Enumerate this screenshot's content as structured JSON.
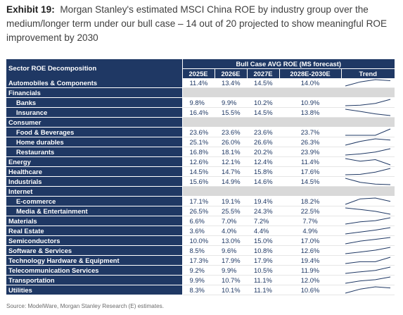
{
  "header": {
    "exhibit": "Exhibit 19:",
    "title": "Morgan Stanley's estimated MSCI China ROE by industry group over the medium/longer term under our bull case – 14 out of 20 projected to show meaningful ROE improvement by 2030"
  },
  "table": {
    "sector_header": "Sector ROE Decomposition",
    "group_header": "Bull Case AVG ROE (MS forecast)",
    "columns": [
      "2025E",
      "2026E",
      "2027E",
      "2028E-2030E",
      "Trend"
    ],
    "rows": [
      {
        "name": "Automobiles & Components",
        "sub": false,
        "values": [
          "11.4%",
          "13.4%",
          "14.5%",
          "14.0%"
        ]
      },
      {
        "name": "Financials",
        "sub": false,
        "values": null
      },
      {
        "name": "Banks",
        "sub": true,
        "values": [
          "9.8%",
          "9.9%",
          "10.2%",
          "10.9%"
        ]
      },
      {
        "name": "Insurance",
        "sub": true,
        "values": [
          "16.4%",
          "15.5%",
          "14.5%",
          "13.8%"
        ]
      },
      {
        "name": "Consumer",
        "sub": false,
        "values": null
      },
      {
        "name": "Food & Beverages",
        "sub": true,
        "values": [
          "23.6%",
          "23.6%",
          "23.6%",
          "23.7%"
        ]
      },
      {
        "name": "Home durables",
        "sub": true,
        "values": [
          "25.1%",
          "26.0%",
          "26.6%",
          "26.3%"
        ]
      },
      {
        "name": "Restaurants",
        "sub": true,
        "values": [
          "16.8%",
          "18.1%",
          "20.2%",
          "23.9%"
        ]
      },
      {
        "name": "Energy",
        "sub": false,
        "values": [
          "12.6%",
          "12.1%",
          "12.4%",
          "11.4%"
        ]
      },
      {
        "name": "Healthcare",
        "sub": false,
        "values": [
          "14.5%",
          "14.7%",
          "15.8%",
          "17.6%"
        ]
      },
      {
        "name": "Industrials",
        "sub": false,
        "values": [
          "15.6%",
          "14.9%",
          "14.6%",
          "14.5%"
        ]
      },
      {
        "name": "Internet",
        "sub": false,
        "values": null
      },
      {
        "name": "E-commerce",
        "sub": true,
        "values": [
          "17.1%",
          "19.1%",
          "19.4%",
          "18.2%"
        ]
      },
      {
        "name": "Media & Entertainment",
        "sub": true,
        "values": [
          "26.5%",
          "25.5%",
          "24.3%",
          "22.5%"
        ]
      },
      {
        "name": "Materials",
        "sub": false,
        "values": [
          "6.6%",
          "7.0%",
          "7.2%",
          "7.7%"
        ]
      },
      {
        "name": "Real Estate",
        "sub": false,
        "values": [
          "3.6%",
          "4.0%",
          "4.4%",
          "4.9%"
        ]
      },
      {
        "name": "Semiconductors",
        "sub": false,
        "values": [
          "10.0%",
          "13.0%",
          "15.0%",
          "17.0%"
        ]
      },
      {
        "name": "Software & Services",
        "sub": false,
        "values": [
          "8.5%",
          "9.6%",
          "10.8%",
          "12.6%"
        ]
      },
      {
        "name": "Technology Hardware & Equipment",
        "sub": false,
        "values": [
          "17.3%",
          "17.9%",
          "17.9%",
          "19.4%"
        ]
      },
      {
        "name": "Telecommunication Services",
        "sub": false,
        "values": [
          "9.2%",
          "9.9%",
          "10.5%",
          "11.9%"
        ]
      },
      {
        "name": "Transportation",
        "sub": false,
        "values": [
          "9.9%",
          "10.7%",
          "11.1%",
          "12.0%"
        ]
      },
      {
        "name": "Utilities",
        "sub": false,
        "values": [
          "8.3%",
          "10.1%",
          "11.1%",
          "10.6%"
        ]
      }
    ]
  },
  "colors": {
    "header_bg": "#1f3864",
    "value_text": "#1f3864",
    "blank_fill": "#d9d9d9",
    "sparkline": "#1f3864"
  },
  "source": "Source: ModelWare, Morgan Stanley Research (E) estimates."
}
